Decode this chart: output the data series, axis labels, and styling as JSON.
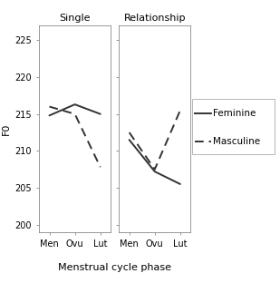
{
  "phases": [
    "Men",
    "Ovu",
    "Lut"
  ],
  "single_feminine": [
    214.8,
    216.3,
    215.0
  ],
  "single_masculine": [
    216.0,
    215.0,
    207.8
  ],
  "relationship_feminine": [
    211.5,
    207.2,
    205.5
  ],
  "relationship_masculine": [
    212.5,
    207.5,
    215.5
  ],
  "ylim": [
    199,
    227
  ],
  "yticks": [
    200,
    205,
    210,
    215,
    220,
    225
  ],
  "ylabel": "F0",
  "xlabel": "Menstrual cycle phase",
  "panel_titles": [
    "Single",
    "Relationship"
  ],
  "legend_labels": [
    "Feminine",
    "Masculine"
  ],
  "line_color": "#333333",
  "bg_color": "#ffffff"
}
